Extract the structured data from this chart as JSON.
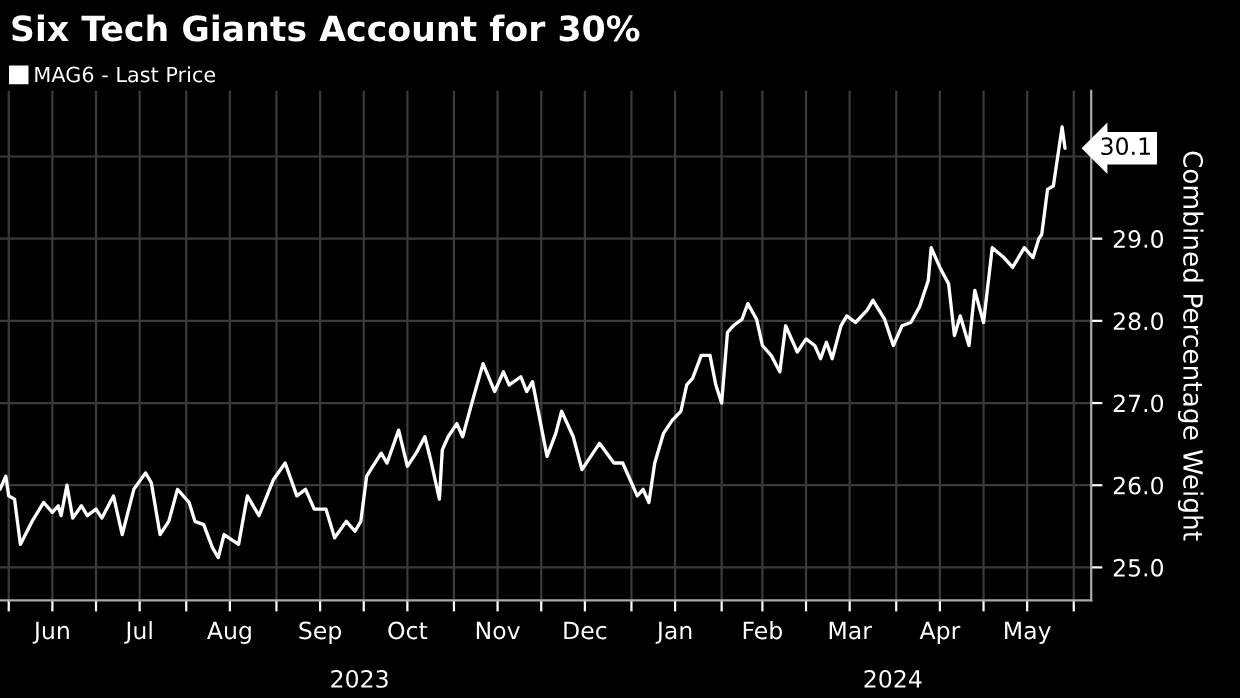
{
  "chart_data": {
    "type": "line",
    "title": "Six Tech Giants Account for 30%",
    "ylabel": "Combined Percentage Weight",
    "annotations": [
      "2023",
      "2024"
    ],
    "legend": "top left",
    "grid": true,
    "marker": "none",
    "line_style": "solid",
    "xlim": [
      "2023-05-29",
      "2024-06-07"
    ],
    "ylim": [
      24.6,
      30.8
    ],
    "yticks": [
      {
        "value": 25,
        "label": "25.0"
      },
      {
        "value": 26,
        "label": "26.0"
      },
      {
        "value": 27,
        "label": "27.0"
      },
      {
        "value": 28,
        "label": "28.0"
      },
      {
        "value": 29,
        "label": "29.0"
      },
      {
        "value": 30,
        "label": null
      }
    ],
    "xticks": [
      {
        "value": "2023-06-01",
        "label": null
      },
      {
        "value": "2023-06-16",
        "label": "Jun"
      },
      {
        "value": "2023-07-01",
        "label": null
      },
      {
        "value": "2023-07-16",
        "label": "Jul"
      },
      {
        "value": "2023-08-01",
        "label": null
      },
      {
        "value": "2023-08-16",
        "label": "Aug"
      },
      {
        "value": "2023-09-01",
        "label": null
      },
      {
        "value": "2023-09-16",
        "label": "Sep"
      },
      {
        "value": "2023-10-01",
        "label": null
      },
      {
        "value": "2023-10-16",
        "label": "Oct"
      },
      {
        "value": "2023-11-01",
        "label": null
      },
      {
        "value": "2023-11-16",
        "label": "Nov"
      },
      {
        "value": "2023-12-01",
        "label": null
      },
      {
        "value": "2023-12-16",
        "label": "Dec"
      },
      {
        "value": "2024-01-01",
        "label": null
      },
      {
        "value": "2024-01-16",
        "label": "Jan"
      },
      {
        "value": "2024-02-01",
        "label": null
      },
      {
        "value": "2024-02-15",
        "label": "Feb"
      },
      {
        "value": "2024-03-01",
        "label": null
      },
      {
        "value": "2024-03-16",
        "label": "Mar"
      },
      {
        "value": "2024-04-01",
        "label": null
      },
      {
        "value": "2024-04-16",
        "label": "Apr"
      },
      {
        "value": "2024-05-01",
        "label": null
      },
      {
        "value": "2024-05-16",
        "label": "May"
      },
      {
        "value": "2024-06-01",
        "label": null
      }
    ],
    "x": [
      "2023-05-29",
      "2023-05-31",
      "2023-06-01",
      "2023-06-03",
      "2023-06-05",
      "2023-06-09",
      "2023-06-13",
      "2023-06-16",
      "2023-06-18",
      "2023-06-19",
      "2023-06-21",
      "2023-06-23",
      "2023-06-26",
      "2023-06-28",
      "2023-07-01",
      "2023-07-03",
      "2023-07-07",
      "2023-07-10",
      "2023-07-14",
      "2023-07-18",
      "2023-07-20",
      "2023-07-23",
      "2023-07-26",
      "2023-07-29",
      "2023-08-02",
      "2023-08-04",
      "2023-08-07",
      "2023-08-10",
      "2023-08-12",
      "2023-08-14",
      "2023-08-19",
      "2023-08-22",
      "2023-08-26",
      "2023-08-31",
      "2023-09-04",
      "2023-09-08",
      "2023-09-11",
      "2023-09-14",
      "2023-09-18",
      "2023-09-21",
      "2023-09-25",
      "2023-09-28",
      "2023-09-30",
      "2023-10-02",
      "2023-10-07",
      "2023-10-09",
      "2023-10-13",
      "2023-10-16",
      "2023-10-19",
      "2023-10-22",
      "2023-10-24",
      "2023-10-27",
      "2023-10-28",
      "2023-10-30",
      "2023-11-02",
      "2023-11-04",
      "2023-11-07",
      "2023-11-11",
      "2023-11-15",
      "2023-11-18",
      "2023-11-20",
      "2023-11-24",
      "2023-11-26",
      "2023-11-28",
      "2023-12-03",
      "2023-12-06",
      "2023-12-08",
      "2023-12-12",
      "2023-12-15",
      "2023-12-21",
      "2023-12-26",
      "2023-12-29",
      "2024-01-03",
      "2024-01-05",
      "2024-01-07",
      "2024-01-09",
      "2024-01-12",
      "2024-01-15",
      "2024-01-18",
      "2024-01-20",
      "2024-01-22",
      "2024-01-25",
      "2024-01-28",
      "2024-01-30",
      "2024-02-01",
      "2024-02-03",
      "2024-02-05",
      "2024-02-08",
      "2024-02-10",
      "2024-02-13",
      "2024-02-15",
      "2024-02-18",
      "2024-02-21",
      "2024-02-23",
      "2024-02-27",
      "2024-03-01",
      "2024-03-04",
      "2024-03-06",
      "2024-03-08",
      "2024-03-10",
      "2024-03-13",
      "2024-03-15",
      "2024-03-18",
      "2024-03-22",
      "2024-03-24",
      "2024-03-28",
      "2024-03-31",
      "2024-04-03",
      "2024-04-06",
      "2024-04-09",
      "2024-04-12",
      "2024-04-13",
      "2024-04-16",
      "2024-04-19",
      "2024-04-21",
      "2024-04-23",
      "2024-04-26",
      "2024-04-28",
      "2024-05-01",
      "2024-05-04",
      "2024-05-08",
      "2024-05-11",
      "2024-05-15",
      "2024-05-18",
      "2024-05-20",
      "2024-05-21",
      "2024-05-23",
      "2024-05-25",
      "2024-05-27",
      "2024-05-28",
      "2024-05-29"
    ],
    "series": [
      {
        "name": "MAG6 - Last Price",
        "color": "#ffffff",
        "values": [
          25.95,
          26.11,
          25.87,
          25.83,
          25.28,
          25.56,
          25.79,
          25.67,
          25.75,
          25.63,
          26.0,
          25.6,
          25.75,
          25.63,
          25.71,
          25.6,
          25.87,
          25.4,
          25.95,
          26.15,
          26.03,
          25.4,
          25.56,
          25.95,
          25.79,
          25.56,
          25.52,
          25.24,
          25.12,
          25.4,
          25.28,
          25.87,
          25.63,
          26.07,
          26.27,
          25.87,
          25.95,
          25.71,
          25.71,
          25.36,
          25.56,
          25.44,
          25.56,
          26.11,
          26.39,
          26.27,
          26.67,
          26.23,
          26.39,
          26.59,
          26.31,
          25.83,
          26.43,
          26.59,
          26.75,
          26.59,
          26.98,
          27.48,
          27.14,
          27.38,
          27.22,
          27.32,
          27.14,
          27.26,
          26.35,
          26.63,
          26.9,
          26.59,
          26.19,
          26.51,
          26.27,
          26.27,
          25.87,
          25.95,
          25.79,
          26.27,
          26.63,
          26.79,
          26.9,
          27.22,
          27.3,
          27.58,
          27.58,
          27.22,
          27.0,
          27.86,
          27.94,
          28.02,
          28.21,
          28.02,
          27.7,
          27.58,
          27.38,
          27.94,
          27.62,
          27.78,
          27.7,
          27.54,
          27.74,
          27.54,
          27.94,
          28.06,
          27.98,
          28.13,
          28.25,
          28.02,
          27.7,
          27.94,
          27.98,
          28.17,
          28.49,
          28.89,
          28.65,
          28.45,
          27.82,
          28.06,
          27.7,
          28.37,
          27.98,
          28.89,
          28.77,
          28.65,
          28.89,
          28.77,
          29.0,
          29.05,
          29.6,
          29.64,
          30.12,
          30.36,
          30.1
        ],
        "value_labels": [
          null,
          null,
          null,
          null,
          null,
          null,
          null,
          null,
          null,
          null,
          null,
          null,
          null,
          null,
          null,
          null,
          null,
          null,
          null,
          null,
          null,
          null,
          null,
          null,
          null,
          null,
          null,
          null,
          null,
          null,
          null,
          null,
          null,
          null,
          null,
          null,
          null,
          null,
          null,
          null,
          null,
          null,
          null,
          null,
          null,
          null,
          null,
          null,
          null,
          null,
          null,
          null,
          null,
          null,
          null,
          null,
          null,
          null,
          null,
          null,
          null,
          null,
          null,
          null,
          null,
          null,
          null,
          null,
          null,
          null,
          null,
          null,
          null,
          null,
          null,
          null,
          null,
          null,
          null,
          null,
          null,
          null,
          null,
          null,
          null,
          null,
          null,
          null,
          null,
          null,
          null,
          null,
          null,
          null,
          null,
          null,
          null,
          null,
          null,
          null,
          null,
          null,
          null,
          null,
          null,
          null,
          null,
          null,
          null,
          null,
          null,
          null,
          null,
          null,
          null,
          null,
          null,
          null,
          null,
          null,
          null,
          null,
          null,
          null,
          null,
          null,
          null,
          null,
          null,
          null,
          "30.1"
        ]
      }
    ]
  }
}
